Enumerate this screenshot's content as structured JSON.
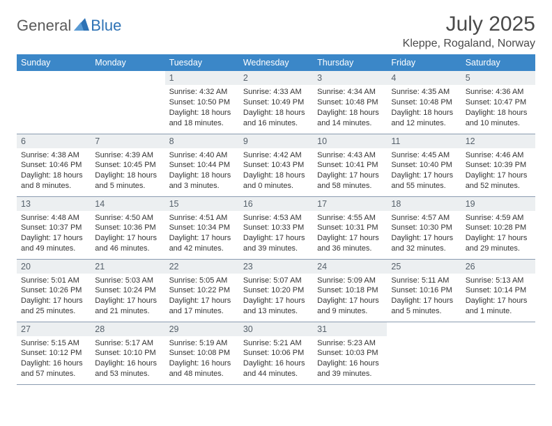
{
  "logo": {
    "text1": "General",
    "text2": "Blue"
  },
  "title": "July 2025",
  "location": "Kleppe, Rogaland, Norway",
  "colors": {
    "header_bg": "#3b87c8",
    "header_text": "#ffffff",
    "daynum_bg": "#eceff1",
    "daynum_text": "#55606a",
    "body_text": "#333333",
    "divider": "#8a9bb0",
    "logo_gray": "#5a5a5a",
    "logo_blue": "#2d72b5",
    "title_text": "#4a4a4a"
  },
  "weekdays": [
    "Sunday",
    "Monday",
    "Tuesday",
    "Wednesday",
    "Thursday",
    "Friday",
    "Saturday"
  ],
  "weeks": [
    [
      null,
      null,
      {
        "n": "1",
        "sr": "4:32 AM",
        "ss": "10:50 PM",
        "dl": "18 hours and 18 minutes."
      },
      {
        "n": "2",
        "sr": "4:33 AM",
        "ss": "10:49 PM",
        "dl": "18 hours and 16 minutes."
      },
      {
        "n": "3",
        "sr": "4:34 AM",
        "ss": "10:48 PM",
        "dl": "18 hours and 14 minutes."
      },
      {
        "n": "4",
        "sr": "4:35 AM",
        "ss": "10:48 PM",
        "dl": "18 hours and 12 minutes."
      },
      {
        "n": "5",
        "sr": "4:36 AM",
        "ss": "10:47 PM",
        "dl": "18 hours and 10 minutes."
      }
    ],
    [
      {
        "n": "6",
        "sr": "4:38 AM",
        "ss": "10:46 PM",
        "dl": "18 hours and 8 minutes."
      },
      {
        "n": "7",
        "sr": "4:39 AM",
        "ss": "10:45 PM",
        "dl": "18 hours and 5 minutes."
      },
      {
        "n": "8",
        "sr": "4:40 AM",
        "ss": "10:44 PM",
        "dl": "18 hours and 3 minutes."
      },
      {
        "n": "9",
        "sr": "4:42 AM",
        "ss": "10:43 PM",
        "dl": "18 hours and 0 minutes."
      },
      {
        "n": "10",
        "sr": "4:43 AM",
        "ss": "10:41 PM",
        "dl": "17 hours and 58 minutes."
      },
      {
        "n": "11",
        "sr": "4:45 AM",
        "ss": "10:40 PM",
        "dl": "17 hours and 55 minutes."
      },
      {
        "n": "12",
        "sr": "4:46 AM",
        "ss": "10:39 PM",
        "dl": "17 hours and 52 minutes."
      }
    ],
    [
      {
        "n": "13",
        "sr": "4:48 AM",
        "ss": "10:37 PM",
        "dl": "17 hours and 49 minutes."
      },
      {
        "n": "14",
        "sr": "4:50 AM",
        "ss": "10:36 PM",
        "dl": "17 hours and 46 minutes."
      },
      {
        "n": "15",
        "sr": "4:51 AM",
        "ss": "10:34 PM",
        "dl": "17 hours and 42 minutes."
      },
      {
        "n": "16",
        "sr": "4:53 AM",
        "ss": "10:33 PM",
        "dl": "17 hours and 39 minutes."
      },
      {
        "n": "17",
        "sr": "4:55 AM",
        "ss": "10:31 PM",
        "dl": "17 hours and 36 minutes."
      },
      {
        "n": "18",
        "sr": "4:57 AM",
        "ss": "10:30 PM",
        "dl": "17 hours and 32 minutes."
      },
      {
        "n": "19",
        "sr": "4:59 AM",
        "ss": "10:28 PM",
        "dl": "17 hours and 29 minutes."
      }
    ],
    [
      {
        "n": "20",
        "sr": "5:01 AM",
        "ss": "10:26 PM",
        "dl": "17 hours and 25 minutes."
      },
      {
        "n": "21",
        "sr": "5:03 AM",
        "ss": "10:24 PM",
        "dl": "17 hours and 21 minutes."
      },
      {
        "n": "22",
        "sr": "5:05 AM",
        "ss": "10:22 PM",
        "dl": "17 hours and 17 minutes."
      },
      {
        "n": "23",
        "sr": "5:07 AM",
        "ss": "10:20 PM",
        "dl": "17 hours and 13 minutes."
      },
      {
        "n": "24",
        "sr": "5:09 AM",
        "ss": "10:18 PM",
        "dl": "17 hours and 9 minutes."
      },
      {
        "n": "25",
        "sr": "5:11 AM",
        "ss": "10:16 PM",
        "dl": "17 hours and 5 minutes."
      },
      {
        "n": "26",
        "sr": "5:13 AM",
        "ss": "10:14 PM",
        "dl": "17 hours and 1 minute."
      }
    ],
    [
      {
        "n": "27",
        "sr": "5:15 AM",
        "ss": "10:12 PM",
        "dl": "16 hours and 57 minutes."
      },
      {
        "n": "28",
        "sr": "5:17 AM",
        "ss": "10:10 PM",
        "dl": "16 hours and 53 minutes."
      },
      {
        "n": "29",
        "sr": "5:19 AM",
        "ss": "10:08 PM",
        "dl": "16 hours and 48 minutes."
      },
      {
        "n": "30",
        "sr": "5:21 AM",
        "ss": "10:06 PM",
        "dl": "16 hours and 44 minutes."
      },
      {
        "n": "31",
        "sr": "5:23 AM",
        "ss": "10:03 PM",
        "dl": "16 hours and 39 minutes."
      },
      null,
      null
    ]
  ]
}
